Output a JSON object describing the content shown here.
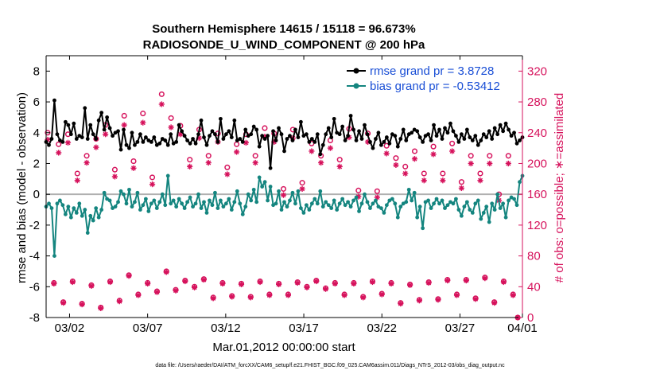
{
  "chart_data": {
    "type": "line",
    "title_line1": "Southern Hemisphere 14615 / 15118 = 96.673%",
    "title_line2": "RADIOSONDE_U_WIND_COMPONENT @ 200 hPa",
    "xlabel": "Mar.01,2012 00:00:00 start",
    "ylabel_left": "rmse and bias (model - observation)",
    "ylabel_right": "# of obs: o=possible; ∗=assimilated",
    "footer": "data file: /Users/raeder/DAI/ATM_forcXX/CAM6_setup/f.e21.FHIST_BGC.f09_025.CAM6assim.011/Diags_NTrS_2012-03/obs_diag_output.nc",
    "x_range": [
      0.5,
      31.0
    ],
    "ylim_left": [
      -8,
      9
    ],
    "ylim_right": [
      0,
      340
    ],
    "left_ticks": [
      -8,
      -6,
      -4,
      -2,
      0,
      2,
      4,
      6,
      8
    ],
    "right_ticks": [
      0,
      40,
      80,
      120,
      160,
      200,
      240,
      280,
      320
    ],
    "x_ticks": [
      {
        "day": 2.0,
        "label": "03/02"
      },
      {
        "day": 7.0,
        "label": "03/07"
      },
      {
        "day": 12.0,
        "label": "03/12"
      },
      {
        "day": 17.0,
        "label": "03/17"
      },
      {
        "day": 22.0,
        "label": "03/22"
      },
      {
        "day": 27.0,
        "label": "03/27"
      },
      {
        "day": 31.0,
        "label": "04/01"
      }
    ],
    "legend": {
      "rmse_label": "rmse grand pr = 3.8728",
      "bias_label": "bias grand pr = -0.53412"
    },
    "colors": {
      "rmse": "#000000",
      "bias": "#14857f",
      "obs": "#d6125c",
      "zero_line": "#b0b0b0",
      "legend_text": "#1a4fd6",
      "right_axis": "#d6125c"
    },
    "rmse": [
      3.4,
      3.2,
      3.6,
      6.1,
      3.9,
      3.5,
      3.4,
      4.7,
      4.5,
      3.9,
      4.6,
      3.6,
      3.8,
      3.7,
      5.6,
      3.6,
      4.5,
      3.9,
      3.6,
      4.8,
      5.3,
      4.2,
      5.0,
      4.3,
      3.8,
      4.0,
      4.1,
      2.9,
      4.2,
      3.2,
      3.0,
      4.0,
      3.2,
      3.4,
      3.9,
      3.4,
      3.7,
      3.5,
      3.4,
      3.7,
      3.2,
      3.3,
      3.6,
      3.5,
      3.2,
      3.9,
      3.3,
      3.4,
      4.5,
      4.1,
      3.8,
      3.5,
      3.3,
      3.6,
      3.3,
      3.9,
      4.8,
      3.7,
      3.2,
      3.8,
      4.1,
      3.9,
      3.4,
      4.9,
      3.6,
      3.9,
      4.1,
      3.7,
      4.8,
      3.5,
      3.6,
      3.4,
      4.2,
      3.8,
      3.9,
      4.4,
      4.2,
      3.1,
      3.8,
      3.6,
      3.8,
      1.7,
      4.1,
      3.5,
      4.3,
      3.9,
      2.8,
      3.6,
      3.8,
      3.5,
      4.2,
      3.7,
      4.7,
      3.8,
      3.9,
      3.4,
      3.6,
      3.4,
      3.9,
      2.6,
      3.2,
      3.9,
      4.3,
      3.7,
      4.9,
      4.0,
      3.9,
      4.4,
      3.5,
      3.8,
      5.1,
      4.2,
      3.5,
      4.1,
      3.6,
      4.5,
      3.9,
      3.4,
      3.0,
      3.6,
      4.0,
      3.2,
      3.4,
      3.7,
      3.3,
      3.9,
      3.8,
      3.1,
      3.6,
      4.2,
      3.5,
      3.9,
      4.0,
      4.2,
      4.1,
      3.7,
      3.4,
      3.8,
      3.9,
      3.5,
      4.5,
      3.8,
      4.2,
      3.6,
      4.3,
      4.0,
      4.6,
      4.1,
      3.8,
      3.4,
      3.9,
      3.6,
      4.2,
      3.7,
      3.5,
      3.8,
      3.2,
      3.5,
      3.9,
      3.7,
      4.1,
      3.6,
      4.3,
      3.9,
      4.5,
      4.1,
      4.6,
      4.2,
      3.8,
      4.0,
      3.3,
      3.5,
      3.7
    ],
    "bias": [
      -0.8,
      -0.6,
      -0.9,
      -4.0,
      -0.6,
      -0.4,
      -0.7,
      -1.3,
      -0.8,
      -1.5,
      -0.9,
      -1.2,
      -0.6,
      -1.4,
      -1.0,
      -2.5,
      -1.4,
      -1.7,
      -0.9,
      -1.5,
      -1.0,
      0.1,
      -0.3,
      -0.4,
      -0.9,
      -0.8,
      -0.5,
      0.2,
      0.0,
      -0.6,
      0.3,
      -0.8,
      -0.5,
      0.1,
      -1.0,
      -0.7,
      -0.3,
      -1.1,
      -0.6,
      -0.4,
      -0.9,
      -0.5,
      0.0,
      -0.7,
      1.2,
      -0.6,
      -0.4,
      -0.8,
      -0.3,
      -0.6,
      -0.9,
      -0.5,
      -0.2,
      -0.8,
      -0.6,
      0.0,
      -0.9,
      -0.5,
      -1.2,
      -0.4,
      -0.7,
      0.1,
      -0.9,
      -0.4,
      -0.8,
      -0.6,
      -0.3,
      -1.0,
      -0.5,
      0.2,
      -0.6,
      -1.3,
      -0.8,
      0.0,
      -0.4,
      0.3,
      -0.5,
      1.1,
      0.5,
      0.8,
      -0.4,
      0.5,
      -0.7,
      -0.6,
      0.2,
      -1.0,
      -0.5,
      -0.8,
      -0.4,
      0.1,
      -0.6,
      0.2,
      -0.9,
      -1.2,
      -0.7,
      -1.0,
      -0.6,
      -0.3,
      -0.6,
      0.2,
      -0.8,
      -0.5,
      -0.7,
      -0.9,
      -0.4,
      -1.0,
      -0.6,
      -0.3,
      -0.7,
      -0.5,
      -0.8,
      -0.4,
      -0.2,
      -1.1,
      -0.6,
      0.0,
      -0.5,
      -0.9,
      -0.6,
      -0.4,
      -0.8,
      -0.9,
      -1.2,
      -0.7,
      -0.4,
      -0.3,
      -0.6,
      -1.5,
      -0.8,
      -0.6,
      -0.5,
      0.3,
      -0.4,
      0.1,
      -1.5,
      -0.8,
      -2.2,
      -0.5,
      -0.4,
      -0.9,
      -0.6,
      -0.3,
      -0.6,
      -0.4,
      -0.9,
      -0.7,
      -0.5,
      -0.6,
      -0.3,
      -1.0,
      -1.4,
      -0.8,
      -0.5,
      -1.0,
      -1.2,
      -0.6,
      -0.4,
      -1.6,
      -1.2,
      -0.8,
      -1.8,
      -0.6,
      -1.0,
      0.0,
      -0.9,
      -0.6,
      -1.5,
      -0.4,
      -0.2,
      -0.3,
      -0.7,
      0.8,
      1.2
    ],
    "obs_possible": [
      {
        "day": 0.6,
        "value": 240
      },
      {
        "day": 1.0,
        "value": 45
      },
      {
        "day": 1.3,
        "value": 225
      },
      {
        "day": 1.6,
        "value": 20
      },
      {
        "day": 1.9,
        "value": 238
      },
      {
        "day": 2.2,
        "value": 47
      },
      {
        "day": 2.5,
        "value": 187
      },
      {
        "day": 2.8,
        "value": 18
      },
      {
        "day": 3.1,
        "value": 210
      },
      {
        "day": 3.4,
        "value": 42
      },
      {
        "day": 3.7,
        "value": 232
      },
      {
        "day": 4.0,
        "value": 13
      },
      {
        "day": 4.3,
        "value": 250
      },
      {
        "day": 4.6,
        "value": 47
      },
      {
        "day": 4.9,
        "value": 192
      },
      {
        "day": 5.2,
        "value": 22
      },
      {
        "day": 5.5,
        "value": 262
      },
      {
        "day": 5.8,
        "value": 55
      },
      {
        "day": 6.1,
        "value": 203
      },
      {
        "day": 6.4,
        "value": 30
      },
      {
        "day": 6.7,
        "value": 265
      },
      {
        "day": 7.0,
        "value": 45
      },
      {
        "day": 7.3,
        "value": 182
      },
      {
        "day": 7.6,
        "value": 34
      },
      {
        "day": 7.9,
        "value": 290
      },
      {
        "day": 8.2,
        "value": 60
      },
      {
        "day": 8.5,
        "value": 259
      },
      {
        "day": 8.8,
        "value": 36
      },
      {
        "day": 9.1,
        "value": 249
      },
      {
        "day": 9.4,
        "value": 48
      },
      {
        "day": 9.7,
        "value": 205
      },
      {
        "day": 10.0,
        "value": 40
      },
      {
        "day": 10.3,
        "value": 244
      },
      {
        "day": 10.6,
        "value": 50
      },
      {
        "day": 10.9,
        "value": 210
      },
      {
        "day": 11.2,
        "value": 26
      },
      {
        "day": 11.5,
        "value": 239
      },
      {
        "day": 11.8,
        "value": 45
      },
      {
        "day": 12.1,
        "value": 195
      },
      {
        "day": 12.4,
        "value": 28
      },
      {
        "day": 12.7,
        "value": 225
      },
      {
        "day": 13.0,
        "value": 44
      },
      {
        "day": 13.3,
        "value": 238
      },
      {
        "day": 13.6,
        "value": 27
      },
      {
        "day": 13.9,
        "value": 210
      },
      {
        "day": 14.2,
        "value": 47
      },
      {
        "day": 14.5,
        "value": 246
      },
      {
        "day": 14.8,
        "value": 30
      },
      {
        "day": 15.1,
        "value": 239
      },
      {
        "day": 15.4,
        "value": 44
      },
      {
        "day": 15.7,
        "value": 167
      },
      {
        "day": 16.0,
        "value": 30
      },
      {
        "day": 16.3,
        "value": 244
      },
      {
        "day": 16.6,
        "value": 46
      },
      {
        "day": 16.9,
        "value": 175
      },
      {
        "day": 17.2,
        "value": 40
      },
      {
        "day": 17.5,
        "value": 226
      },
      {
        "day": 17.8,
        "value": 48
      },
      {
        "day": 18.1,
        "value": 210
      },
      {
        "day": 18.4,
        "value": 38
      },
      {
        "day": 18.7,
        "value": 230
      },
      {
        "day": 19.0,
        "value": 45
      },
      {
        "day": 19.3,
        "value": 205
      },
      {
        "day": 19.6,
        "value": 30
      },
      {
        "day": 19.9,
        "value": 245
      },
      {
        "day": 20.2,
        "value": 45
      },
      {
        "day": 20.5,
        "value": 165
      },
      {
        "day": 20.8,
        "value": 27
      },
      {
        "day": 21.1,
        "value": 239
      },
      {
        "day": 21.4,
        "value": 47
      },
      {
        "day": 21.7,
        "value": 164
      },
      {
        "day": 22.0,
        "value": 31
      },
      {
        "day": 22.3,
        "value": 223
      },
      {
        "day": 22.6,
        "value": 45
      },
      {
        "day": 22.9,
        "value": 207
      },
      {
        "day": 23.2,
        "value": 19
      },
      {
        "day": 23.5,
        "value": 196
      },
      {
        "day": 23.8,
        "value": 43
      },
      {
        "day": 24.1,
        "value": 216
      },
      {
        "day": 24.4,
        "value": 23
      },
      {
        "day": 24.7,
        "value": 187
      },
      {
        "day": 25.0,
        "value": 46
      },
      {
        "day": 25.3,
        "value": 222
      },
      {
        "day": 25.6,
        "value": 24
      },
      {
        "day": 25.9,
        "value": 187
      },
      {
        "day": 26.2,
        "value": 49
      },
      {
        "day": 26.5,
        "value": 226
      },
      {
        "day": 26.8,
        "value": 30
      },
      {
        "day": 27.1,
        "value": 176
      },
      {
        "day": 27.4,
        "value": 49
      },
      {
        "day": 27.7,
        "value": 210
      },
      {
        "day": 28.0,
        "value": 25
      },
      {
        "day": 28.3,
        "value": 187
      },
      {
        "day": 28.6,
        "value": 52
      },
      {
        "day": 28.9,
        "value": 210
      },
      {
        "day": 29.2,
        "value": 20
      },
      {
        "day": 29.5,
        "value": 160
      },
      {
        "day": 29.8,
        "value": 47
      },
      {
        "day": 30.1,
        "value": 210
      },
      {
        "day": 30.4,
        "value": 30
      },
      {
        "day": 30.7,
        "value": 0
      }
    ],
    "obs_assimilated": [
      {
        "day": 0.6,
        "value": 231
      },
      {
        "day": 1.0,
        "value": 44
      },
      {
        "day": 1.3,
        "value": 214
      },
      {
        "day": 1.6,
        "value": 19
      },
      {
        "day": 1.9,
        "value": 227
      },
      {
        "day": 2.2,
        "value": 46
      },
      {
        "day": 2.5,
        "value": 178
      },
      {
        "day": 2.8,
        "value": 17
      },
      {
        "day": 3.1,
        "value": 201
      },
      {
        "day": 3.4,
        "value": 41
      },
      {
        "day": 3.7,
        "value": 221
      },
      {
        "day": 4.0,
        "value": 12
      },
      {
        "day": 4.3,
        "value": 238
      },
      {
        "day": 4.6,
        "value": 46
      },
      {
        "day": 4.9,
        "value": 183
      },
      {
        "day": 5.2,
        "value": 21
      },
      {
        "day": 5.5,
        "value": 250
      },
      {
        "day": 5.8,
        "value": 54
      },
      {
        "day": 6.1,
        "value": 194
      },
      {
        "day": 6.4,
        "value": 29
      },
      {
        "day": 6.7,
        "value": 253
      },
      {
        "day": 7.0,
        "value": 44
      },
      {
        "day": 7.3,
        "value": 173
      },
      {
        "day": 7.6,
        "value": 33
      },
      {
        "day": 7.9,
        "value": 277
      },
      {
        "day": 8.2,
        "value": 59
      },
      {
        "day": 8.5,
        "value": 247
      },
      {
        "day": 8.8,
        "value": 35
      },
      {
        "day": 9.1,
        "value": 238
      },
      {
        "day": 9.4,
        "value": 47
      },
      {
        "day": 9.7,
        "value": 196
      },
      {
        "day": 10.0,
        "value": 39
      },
      {
        "day": 10.3,
        "value": 233
      },
      {
        "day": 10.6,
        "value": 49
      },
      {
        "day": 10.9,
        "value": 201
      },
      {
        "day": 11.2,
        "value": 25
      },
      {
        "day": 11.5,
        "value": 228
      },
      {
        "day": 11.8,
        "value": 44
      },
      {
        "day": 12.1,
        "value": 186
      },
      {
        "day": 12.4,
        "value": 27
      },
      {
        "day": 12.7,
        "value": 215
      },
      {
        "day": 13.0,
        "value": 43
      },
      {
        "day": 13.3,
        "value": 227
      },
      {
        "day": 13.6,
        "value": 26
      },
      {
        "day": 13.9,
        "value": 201
      },
      {
        "day": 14.2,
        "value": 46
      },
      {
        "day": 14.5,
        "value": 235
      },
      {
        "day": 14.8,
        "value": 29
      },
      {
        "day": 15.1,
        "value": 228
      },
      {
        "day": 15.4,
        "value": 43
      },
      {
        "day": 15.7,
        "value": 159
      },
      {
        "day": 16.0,
        "value": 29
      },
      {
        "day": 16.3,
        "value": 233
      },
      {
        "day": 16.6,
        "value": 45
      },
      {
        "day": 16.9,
        "value": 167
      },
      {
        "day": 17.2,
        "value": 39
      },
      {
        "day": 17.5,
        "value": 216
      },
      {
        "day": 17.8,
        "value": 47
      },
      {
        "day": 18.1,
        "value": 201
      },
      {
        "day": 18.4,
        "value": 37
      },
      {
        "day": 18.7,
        "value": 220
      },
      {
        "day": 19.0,
        "value": 44
      },
      {
        "day": 19.3,
        "value": 196
      },
      {
        "day": 19.6,
        "value": 29
      },
      {
        "day": 19.9,
        "value": 234
      },
      {
        "day": 20.2,
        "value": 44
      },
      {
        "day": 20.5,
        "value": 157
      },
      {
        "day": 20.8,
        "value": 26
      },
      {
        "day": 21.1,
        "value": 228
      },
      {
        "day": 21.4,
        "value": 46
      },
      {
        "day": 21.7,
        "value": 156
      },
      {
        "day": 22.0,
        "value": 30
      },
      {
        "day": 22.3,
        "value": 213
      },
      {
        "day": 22.6,
        "value": 44
      },
      {
        "day": 22.9,
        "value": 198
      },
      {
        "day": 23.2,
        "value": 18
      },
      {
        "day": 23.5,
        "value": 187
      },
      {
        "day": 23.8,
        "value": 42
      },
      {
        "day": 24.1,
        "value": 206
      },
      {
        "day": 24.4,
        "value": 22
      },
      {
        "day": 24.7,
        "value": 178
      },
      {
        "day": 25.0,
        "value": 45
      },
      {
        "day": 25.3,
        "value": 212
      },
      {
        "day": 25.6,
        "value": 23
      },
      {
        "day": 25.9,
        "value": 178
      },
      {
        "day": 26.2,
        "value": 48
      },
      {
        "day": 26.5,
        "value": 216
      },
      {
        "day": 26.8,
        "value": 29
      },
      {
        "day": 27.1,
        "value": 168
      },
      {
        "day": 27.4,
        "value": 48
      },
      {
        "day": 27.7,
        "value": 200
      },
      {
        "day": 28.0,
        "value": 24
      },
      {
        "day": 28.3,
        "value": 178
      },
      {
        "day": 28.6,
        "value": 51
      },
      {
        "day": 28.9,
        "value": 200
      },
      {
        "day": 29.2,
        "value": 19
      },
      {
        "day": 29.5,
        "value": 152
      },
      {
        "day": 29.8,
        "value": 46
      },
      {
        "day": 30.1,
        "value": 200
      },
      {
        "day": 30.4,
        "value": 29
      },
      {
        "day": 30.7,
        "value": 0
      }
    ]
  }
}
